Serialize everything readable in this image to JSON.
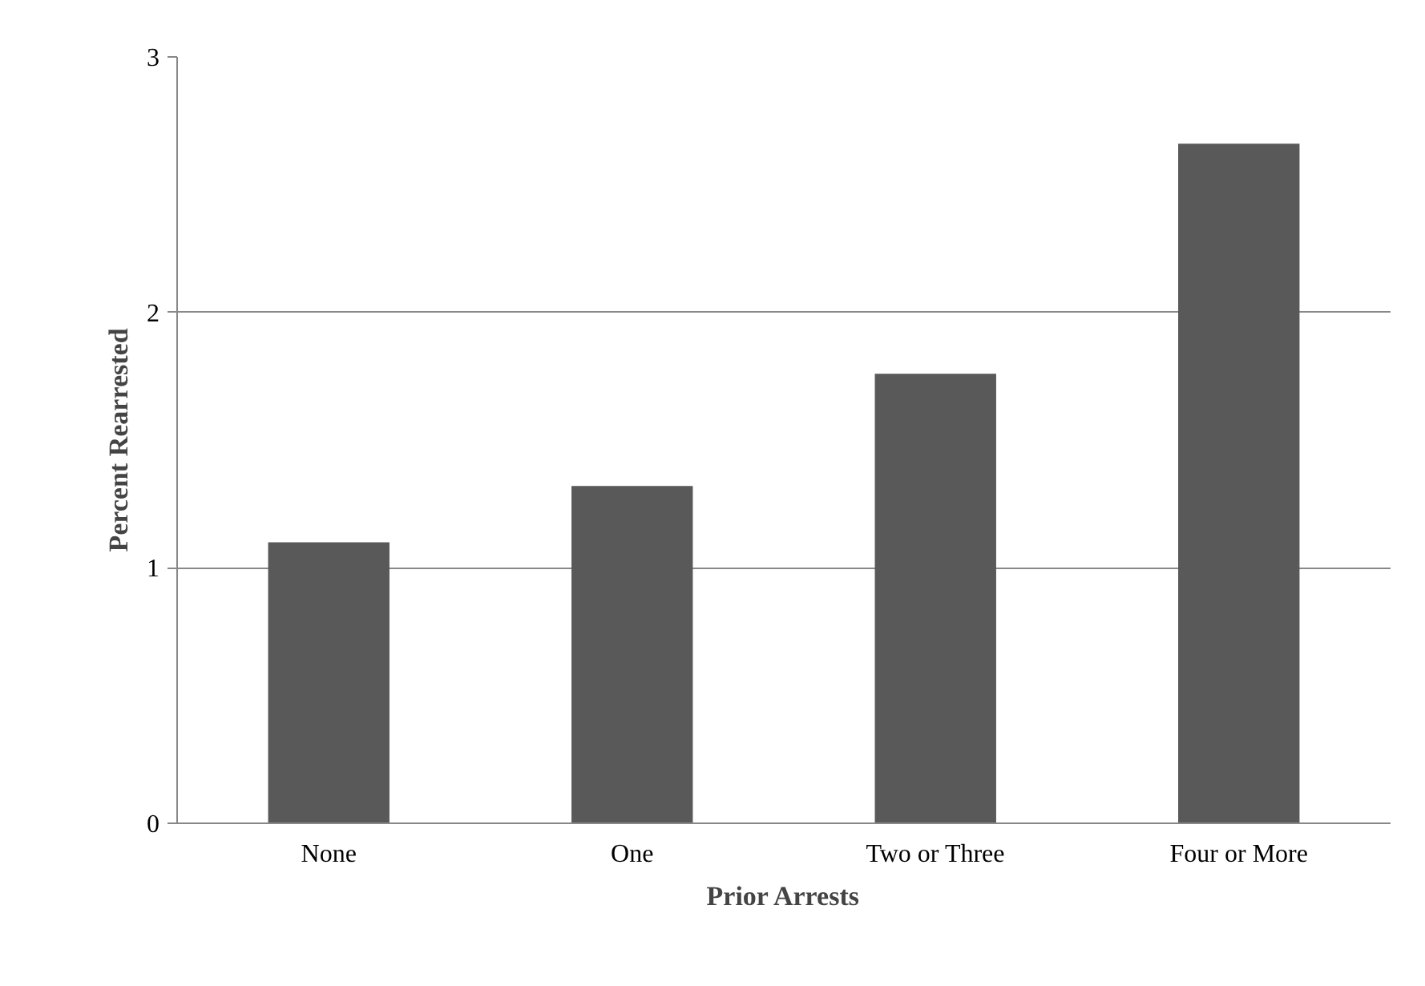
{
  "chart_data": {
    "type": "bar",
    "xlabel": "Prior Arrests",
    "ylabel": "Percent Rearrested",
    "categories": [
      "None",
      "One",
      "Two or Three",
      "Four or More"
    ],
    "values": [
      1.1,
      1.32,
      1.76,
      2.66
    ],
    "color": "#595959",
    "ylim": [
      0,
      3
    ],
    "yticks": [
      0,
      1,
      2,
      3
    ],
    "grid": "y"
  }
}
